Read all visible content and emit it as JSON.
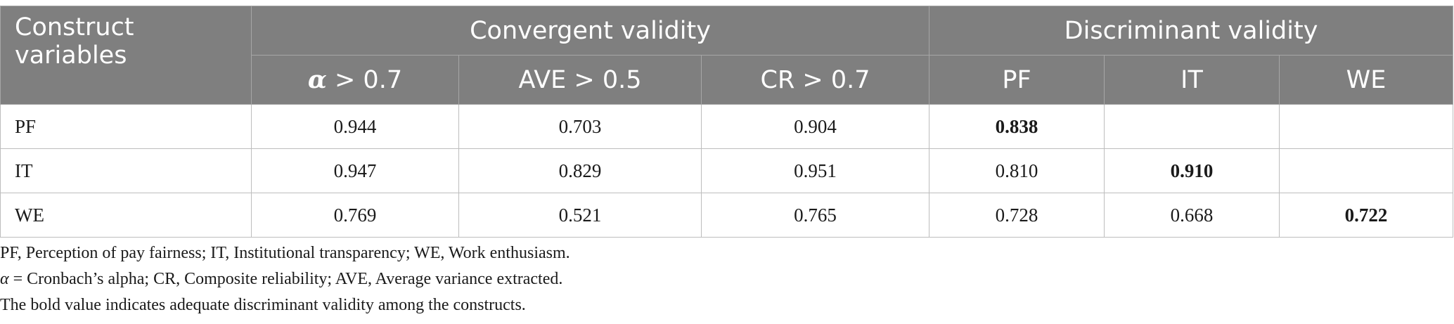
{
  "table": {
    "header": {
      "construct_label": "Construct variables",
      "group_convergent": "Convergent validity",
      "group_discriminant": "Discriminant validity",
      "alpha_symbol": "α",
      "alpha_rest": " > 0.7",
      "ave": "AVE > 0.5",
      "cr": "CR > 0.7",
      "pf": "PF",
      "it": "IT",
      "we": "WE"
    },
    "rows": [
      {
        "label": "PF",
        "alpha": "0.944",
        "ave": "0.703",
        "cr": "0.904",
        "pf": "0.838",
        "it": "",
        "we": ""
      },
      {
        "label": "IT",
        "alpha": "0.947",
        "ave": "0.829",
        "cr": "0.951",
        "pf": "0.810",
        "it": "0.910",
        "we": ""
      },
      {
        "label": "WE",
        "alpha": "0.769",
        "ave": "0.521",
        "cr": "0.765",
        "pf": "0.728",
        "it": "0.668",
        "we": "0.722"
      }
    ]
  },
  "notes": {
    "abbreviations": "PF, Perception of pay fairness; IT, Institutional transparency; WE, Work enthusiasm.",
    "alpha_symbol": "α",
    "alpha_note": " = Cronbach’s alpha; CR, Composite reliability; AVE, Average variance extracted.",
    "bold_note": "The bold value indicates adequate discriminant validity among the constructs."
  }
}
